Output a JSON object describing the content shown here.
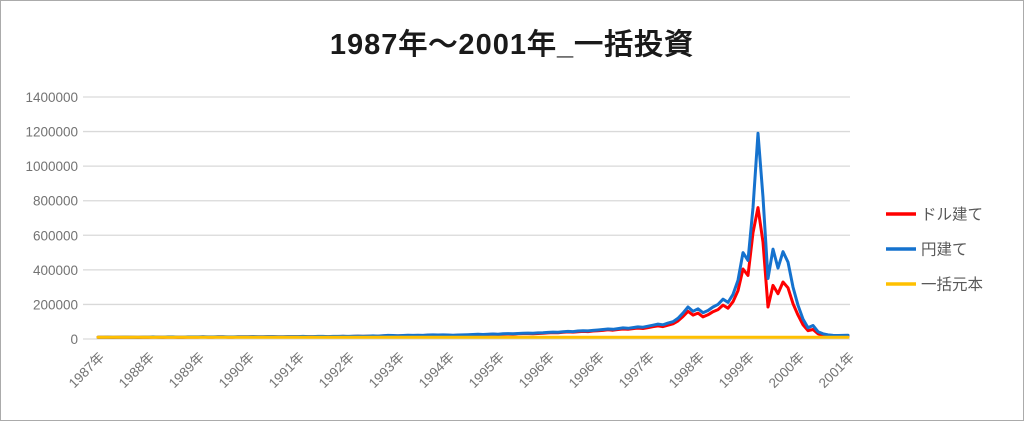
{
  "title": "1987年〜2001年_一括投資",
  "frame": {
    "border_color": "#ababab",
    "background": "#ffffff"
  },
  "colors": {
    "gridline": "#d9d9d9",
    "axis_label": "#737373",
    "legend_label": "#595959",
    "title_text": "#1a1a1a"
  },
  "chart_data": {
    "type": "line",
    "title": "1987年〜2001年_一括投資",
    "xlabel": "",
    "ylabel": "",
    "ylim": [
      0,
      1400000
    ],
    "y_ticks": [
      0,
      200000,
      400000,
      600000,
      800000,
      1000000,
      1200000,
      1400000
    ],
    "y_tick_labels": [
      "0",
      "200000",
      "400000",
      "600000",
      "800000",
      "1000000",
      "1200000",
      "1400000"
    ],
    "x_tick_labels": [
      "1987年",
      "1988年",
      "1989年",
      "1990年",
      "1991年",
      "1992年",
      "1993年",
      "1994年",
      "1995年",
      "1996年",
      "1996年",
      "1997年",
      "1998年",
      "1999年",
      "2000年",
      "2001年"
    ],
    "grid": "horizontal",
    "legend_position": "right",
    "series": [
      {
        "name": "ドル建て",
        "color": "#ff0000",
        "values": [
          10000,
          10000,
          10000,
          9000,
          10000,
          10000,
          10000,
          10000,
          9000,
          10000,
          10000,
          11000,
          11000,
          10000,
          11000,
          11000,
          10000,
          10000,
          11000,
          11000,
          11000,
          12000,
          11000,
          11000,
          12000,
          12000,
          11000,
          11000,
          12000,
          12000,
          12000,
          13000,
          12000,
          12000,
          13000,
          13000,
          12000,
          12000,
          13000,
          13000,
          13000,
          14000,
          13000,
          13000,
          14000,
          14000,
          13000,
          14000,
          14000,
          15000,
          14000,
          15000,
          16000,
          15000,
          16000,
          17000,
          16000,
          18000,
          19000,
          18000,
          18000,
          19000,
          20000,
          19000,
          20000,
          20000,
          21000,
          22000,
          21000,
          22000,
          21000,
          20000,
          21000,
          22000,
          23000,
          24000,
          25000,
          24000,
          26000,
          27000,
          26000,
          28000,
          29000,
          28000,
          30000,
          31000,
          31000,
          30000,
          32000,
          33000,
          35000,
          37000,
          36000,
          39000,
          41000,
          40000,
          42000,
          44000,
          43000,
          46000,
          48000,
          50000,
          53000,
          51000,
          55000,
          58000,
          56000,
          60000,
          63000,
          61000,
          66000,
          71000,
          76000,
          72000,
          80000,
          88000,
          105000,
          130000,
          160000,
          138000,
          150000,
          128000,
          140000,
          158000,
          170000,
          196000,
          178000,
          216000,
          280000,
          405000,
          368000,
          615000,
          760000,
          560000,
          185000,
          310000,
          262000,
          330000,
          296000,
          205000,
          138000,
          82000,
          48000,
          55000,
          30000,
          21000,
          17000,
          15000,
          14000,
          14000,
          15000
        ]
      },
      {
        "name": "円建て",
        "color": "#1572ce",
        "values": [
          10000,
          10000,
          11000,
          10000,
          10000,
          11000,
          11000,
          10000,
          10000,
          11000,
          11000,
          12000,
          11000,
          11000,
          12000,
          12000,
          11000,
          11000,
          12000,
          12000,
          12000,
          13000,
          12000,
          12000,
          13000,
          13000,
          12000,
          12000,
          13000,
          13000,
          13000,
          14000,
          13000,
          13000,
          14000,
          14000,
          13000,
          13000,
          14000,
          14000,
          14000,
          15000,
          14000,
          14000,
          15000,
          15000,
          14000,
          15000,
          15000,
          16000,
          15000,
          16000,
          17000,
          16000,
          17000,
          18000,
          17000,
          19000,
          21000,
          20000,
          19000,
          20000,
          22000,
          21000,
          22000,
          21000,
          23000,
          24000,
          23000,
          24000,
          23000,
          22000,
          23000,
          24000,
          25000,
          26000,
          27000,
          26000,
          28000,
          29000,
          28000,
          30000,
          31000,
          30000,
          32000,
          33000,
          34000,
          33000,
          35000,
          36000,
          38000,
          40000,
          39000,
          42000,
          44000,
          43000,
          46000,
          48000,
          47000,
          50000,
          52000,
          55000,
          58000,
          56000,
          60000,
          64000,
          62000,
          66000,
          70000,
          68000,
          74000,
          80000,
          86000,
          82000,
          92000,
          100000,
          120000,
          150000,
          185000,
          160000,
          175000,
          152000,
          165000,
          185000,
          200000,
          230000,
          212000,
          258000,
          340000,
          500000,
          455000,
          760000,
          1190000,
          820000,
          350000,
          520000,
          410000,
          505000,
          445000,
          300000,
          195000,
          115000,
          65000,
          78000,
          42000,
          30000,
          24000,
          21000,
          20000,
          21000,
          22000
        ]
      },
      {
        "name": "一括元本",
        "color": "#ffc000",
        "constant": 10000,
        "points": 151
      }
    ]
  },
  "legend": {
    "items": [
      {
        "label": "ドル建て",
        "color": "#ff0000"
      },
      {
        "label": "円建て",
        "color": "#1572ce"
      },
      {
        "label": "一括元本",
        "color": "#ffc000"
      }
    ]
  }
}
